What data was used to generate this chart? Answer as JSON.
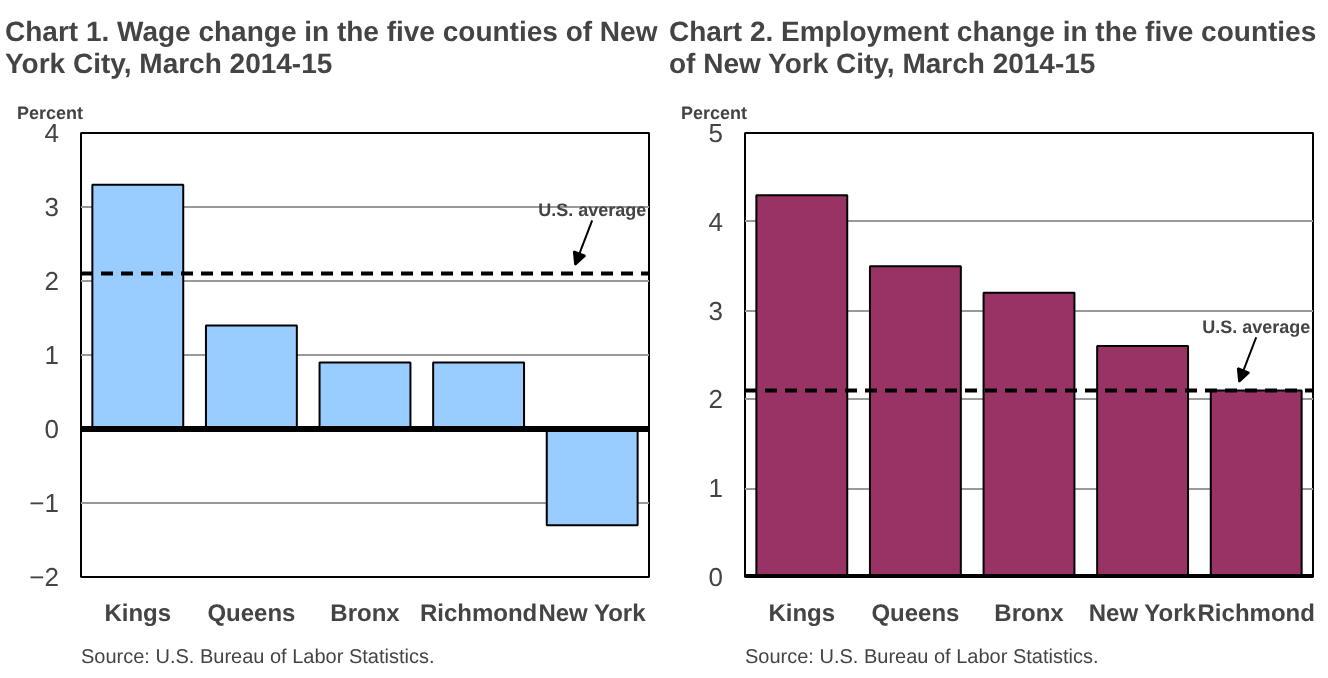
{
  "chart_data": [
    {
      "type": "bar",
      "title": "Chart 1. Wage change in the five counties of New York City, March 2014-15",
      "ylabel": "Percent",
      "categories": [
        "Kings",
        "Queens",
        "Bronx",
        "Richmond",
        "New York"
      ],
      "series": [
        {
          "color": "#99ccff",
          "values": [
            3.3,
            1.4,
            0.9,
            0.9,
            -1.3
          ]
        }
      ],
      "ylim": [
        -2,
        4
      ],
      "yticks": [
        -2,
        -1,
        0,
        1,
        2,
        3,
        4
      ],
      "grid": "y",
      "ref_lines": [
        {
          "axis": "y",
          "value": 2.1,
          "label": "U.S. average",
          "line_style": "dashed",
          "color": "#000000"
        }
      ],
      "annotations": [
        "Source: U.S. Bureau of Labor Statistics."
      ]
    },
    {
      "type": "bar",
      "title": "Chart 2. Employment change in the five counties of New York City, March 2014-15",
      "ylabel": "Percent",
      "categories": [
        "Kings",
        "Queens",
        "Bronx",
        "New York",
        "Richmond"
      ],
      "series": [
        {
          "color": "#993366",
          "values": [
            4.3,
            3.5,
            3.2,
            2.6,
            2.1
          ]
        }
      ],
      "ylim": [
        0,
        5
      ],
      "yticks": [
        0,
        1,
        2,
        3,
        4,
        5
      ],
      "grid": "y",
      "ref_lines": [
        {
          "axis": "y",
          "value": 2.1,
          "label": "U.S. average",
          "line_style": "dashed",
          "color": "#000000"
        }
      ],
      "annotations": [
        "Source: U.S. Bureau of Labor Statistics."
      ]
    }
  ]
}
